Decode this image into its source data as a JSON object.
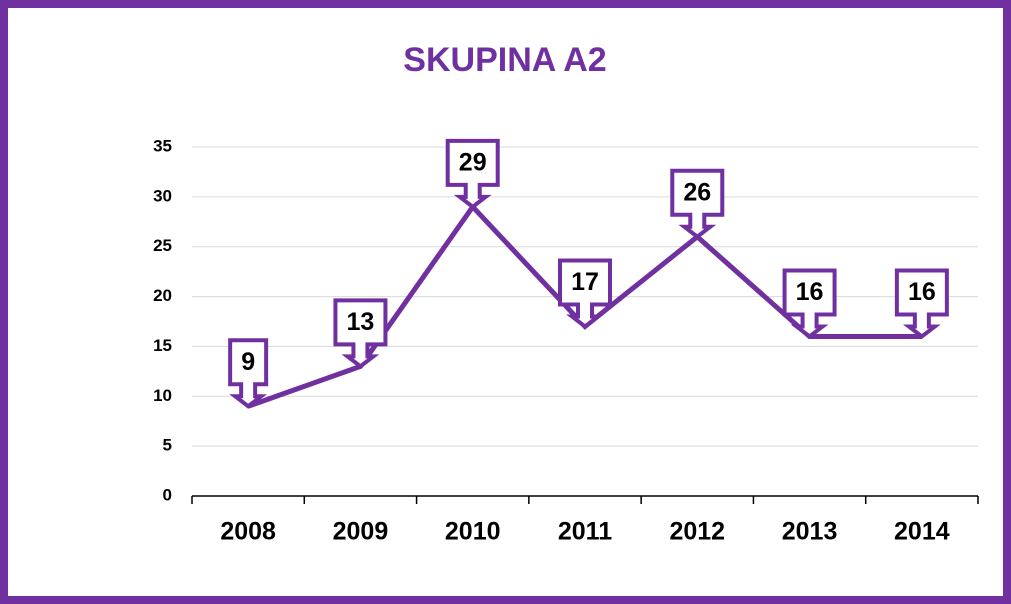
{
  "chart_data": {
    "type": "line",
    "title": "SKUPINA A2",
    "categories": [
      "2008",
      "2009",
      "2010",
      "2011",
      "2012",
      "2013",
      "2014"
    ],
    "series": [
      {
        "name": "SKUPINA A2",
        "color": "#7030a0",
        "values": [
          9,
          13,
          29,
          17,
          26,
          16,
          16
        ]
      }
    ],
    "ylim": [
      0,
      35
    ],
    "yticks": [
      0,
      5,
      10,
      15,
      20,
      25,
      30,
      35
    ],
    "grid": true
  }
}
